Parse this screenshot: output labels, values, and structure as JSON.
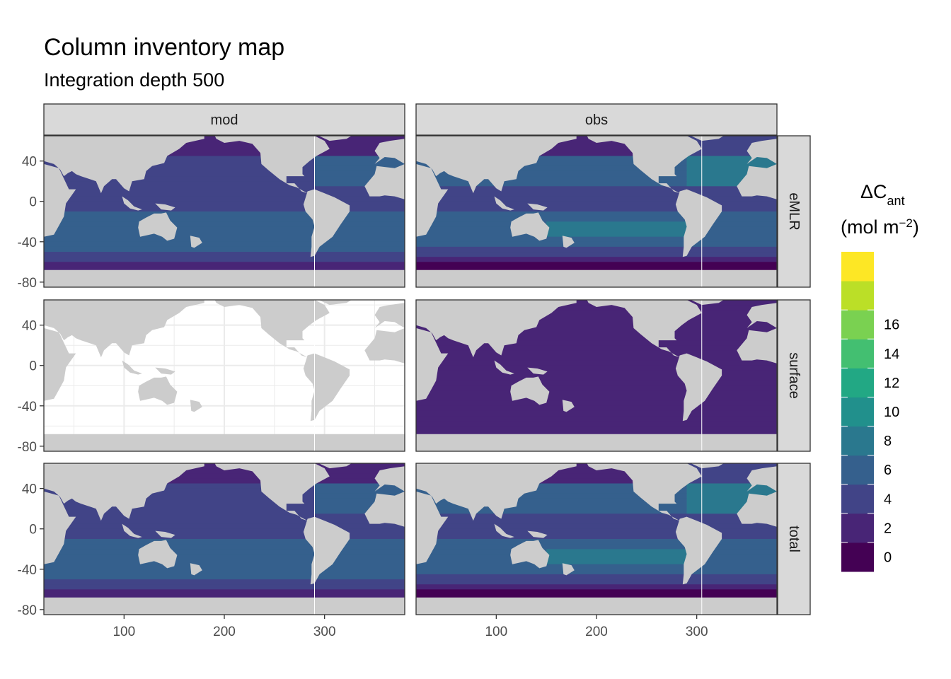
{
  "title": "Column inventory map",
  "subtitle": "Integration depth 500",
  "chart_data": {
    "type": "heatmap",
    "facet_columns": [
      "mod",
      "obs"
    ],
    "facet_rows": [
      "eMLR",
      "surface",
      "total"
    ],
    "x_ticks": [
      100,
      200,
      300
    ],
    "y_ticks": [
      40,
      0,
      -40,
      -80
    ],
    "xlim": [
      20,
      380
    ],
    "ylim": [
      -85,
      65
    ],
    "grid": "on",
    "legend": {
      "position": "right",
      "title_main": "ΔC",
      "title_sub": "ant",
      "units_main": "(mol m",
      "units_sup": "−2",
      "units_close": ")",
      "bin_edges": [
        -2,
        0,
        2,
        4,
        6,
        8,
        10,
        12,
        14,
        16,
        18
      ],
      "labels": [
        "0",
        "2",
        "4",
        "6",
        "8",
        "10",
        "12",
        "14",
        "16"
      ],
      "colors": [
        "#440154",
        "#482576",
        "#414487",
        "#35608D",
        "#2A788E",
        "#21908C",
        "#22A884",
        "#43BF71",
        "#7AD151",
        "#BBDF27",
        "#FDE725"
      ]
    },
    "land_color": "#CCCCCC",
    "panels": [
      {
        "col": "mod",
        "row": "eMLR",
        "typical_range": [
          0,
          6
        ],
        "has_data": true
      },
      {
        "col": "obs",
        "row": "eMLR",
        "typical_range": [
          -2,
          8
        ],
        "has_data": true
      },
      {
        "col": "mod",
        "row": "surface",
        "typical_range": null,
        "has_data": false
      },
      {
        "col": "obs",
        "row": "surface",
        "typical_range": [
          0,
          2
        ],
        "has_data": true
      },
      {
        "col": "mod",
        "row": "total",
        "typical_range": [
          0,
          6
        ],
        "has_data": true
      },
      {
        "col": "obs",
        "row": "total",
        "typical_range": [
          -2,
          8
        ],
        "has_data": true
      }
    ]
  }
}
